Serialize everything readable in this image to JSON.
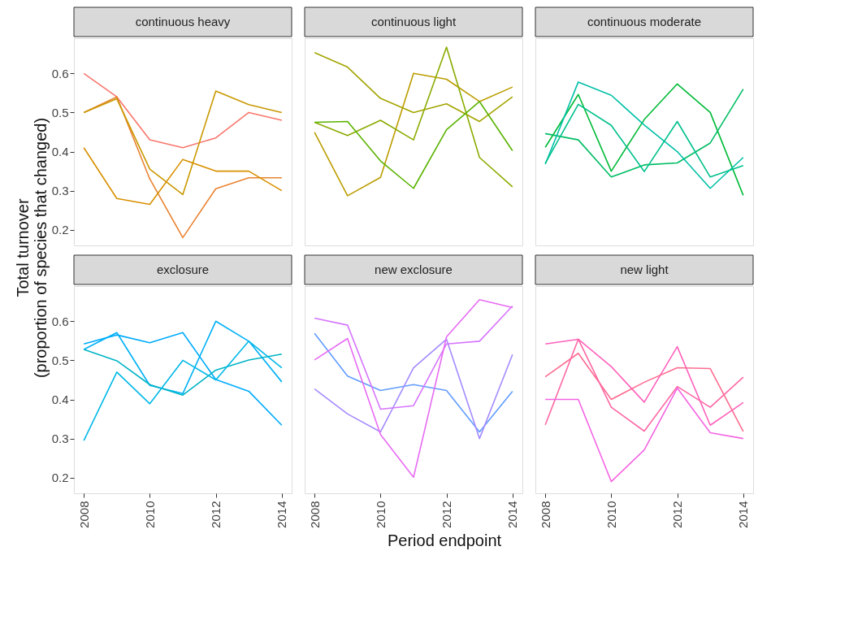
{
  "chart_data": [
    {
      "type": "line",
      "title": "continuous heavy",
      "ylabel": "Total turnover\n(proportion of species that changed)",
      "x": [
        2008,
        2009,
        2010,
        2011,
        2012,
        2013,
        2014
      ],
      "xlim": [
        2007.7,
        2014.3
      ],
      "ylim": [
        0.16,
        0.69
      ],
      "xticks": [
        2008,
        2010,
        2012,
        2014
      ],
      "yticks": [
        0.2,
        0.3,
        0.4,
        0.5,
        0.6
      ],
      "tick_labels": "y",
      "grid": false,
      "series": [
        {
          "color": "#F8766D",
          "values": [
            0.6,
            0.54,
            0.43,
            0.41,
            0.435,
            0.5,
            0.48
          ]
        },
        {
          "color": "#EA8331",
          "values": [
            0.5,
            0.54,
            0.33,
            0.18,
            0.305,
            0.333,
            0.333
          ]
        },
        {
          "color": "#C99800",
          "values": [
            0.5,
            0.535,
            0.355,
            0.29,
            0.555,
            0.52,
            0.5
          ]
        },
        {
          "color": "#D89000",
          "values": [
            0.41,
            0.28,
            0.265,
            0.38,
            0.35,
            0.35,
            0.3
          ]
        }
      ]
    },
    {
      "type": "line",
      "title": "continuous light",
      "x": [
        2008,
        2009,
        2010,
        2011,
        2012,
        2013,
        2014
      ],
      "xlim": [
        2007.7,
        2014.3
      ],
      "ylim": [
        0.16,
        0.69
      ],
      "xticks": [
        2008,
        2010,
        2012,
        2014
      ],
      "yticks": [
        0.2,
        0.3,
        0.4,
        0.5,
        0.6
      ],
      "tick_labels": false,
      "grid": false,
      "series": [
        {
          "color": "#A3A500",
          "values": [
            0.653,
            0.616,
            0.536,
            0.5,
            0.522,
            0.477,
            0.54
          ]
        },
        {
          "color": "#BB9D00",
          "values": [
            0.449,
            0.287,
            0.334,
            0.6,
            0.585,
            0.528,
            0.565
          ]
        },
        {
          "color": "#8AAB00",
          "values": [
            0.475,
            0.441,
            0.48,
            0.43,
            0.667,
            0.385,
            0.31
          ]
        },
        {
          "color": "#5BB300",
          "values": [
            0.475,
            0.477,
            0.376,
            0.306,
            0.456,
            0.528,
            0.402
          ]
        }
      ]
    },
    {
      "type": "line",
      "title": "continuous moderate",
      "x": [
        2008,
        2009,
        2010,
        2011,
        2012,
        2013,
        2014
      ],
      "xlim": [
        2007.7,
        2014.3
      ],
      "ylim": [
        0.16,
        0.69
      ],
      "xticks": [
        2008,
        2010,
        2012,
        2014
      ],
      "yticks": [
        0.2,
        0.3,
        0.4,
        0.5,
        0.6
      ],
      "tick_labels": false,
      "grid": false,
      "series": [
        {
          "color": "#00BA38",
          "values": [
            0.411,
            0.546,
            0.35,
            0.482,
            0.573,
            0.5,
            0.288
          ]
        },
        {
          "color": "#00BD64",
          "values": [
            0.446,
            0.43,
            0.335,
            0.366,
            0.371,
            0.422,
            0.56
          ]
        },
        {
          "color": "#00C0A8",
          "values": [
            0.368,
            0.578,
            0.544,
            0.468,
            0.4,
            0.306,
            0.385
          ]
        },
        {
          "color": "#00C08B",
          "values": [
            0.37,
            0.521,
            0.467,
            0.349,
            0.477,
            0.335,
            0.364
          ]
        }
      ]
    },
    {
      "type": "line",
      "title": "exclosure",
      "x": [
        2008,
        2009,
        2010,
        2011,
        2012,
        2013,
        2014
      ],
      "xlim": [
        2007.7,
        2014.3
      ],
      "ylim": [
        0.16,
        0.69
      ],
      "xticks": [
        2008,
        2010,
        2012,
        2014
      ],
      "yticks": [
        0.2,
        0.3,
        0.4,
        0.5,
        0.6
      ],
      "grid": false,
      "series": [
        {
          "color": "#00ABFD",
          "values": [
            0.542,
            0.565,
            0.545,
            0.571,
            0.451,
            0.421,
            0.334
          ]
        },
        {
          "color": "#00B0F6",
          "values": [
            0.528,
            0.571,
            0.436,
            0.415,
            0.6,
            0.549,
            0.445
          ]
        },
        {
          "color": "#00B4C5",
          "values": [
            0.528,
            0.499,
            0.438,
            0.411,
            0.475,
            0.501,
            0.516
          ]
        },
        {
          "color": "#00B8E7",
          "values": [
            0.295,
            0.47,
            0.389,
            0.5,
            0.45,
            0.549,
            0.481
          ]
        }
      ]
    },
    {
      "type": "line",
      "title": "new exclosure",
      "xlabel": "Period endpoint",
      "x": [
        2008,
        2009,
        2010,
        2011,
        2012,
        2013,
        2014
      ],
      "xlim": [
        2007.7,
        2014.3
      ],
      "ylim": [
        0.16,
        0.69
      ],
      "xticks": [
        2008,
        2010,
        2012,
        2014
      ],
      "yticks": [
        0.2,
        0.3,
        0.4,
        0.5,
        0.6
      ],
      "tick_labels": "x",
      "grid": false,
      "series": [
        {
          "color": "#619CFF",
          "values": [
            0.569,
            0.46,
            0.423,
            0.438,
            0.423,
            0.317,
            0.421
          ]
        },
        {
          "color": "#A58AFF",
          "values": [
            0.427,
            0.363,
            0.317,
            0.481,
            0.554,
            0.3,
            0.515
          ]
        },
        {
          "color": "#D575FE",
          "values": [
            0.608,
            0.59,
            0.375,
            0.384,
            0.542,
            0.549,
            0.639
          ]
        },
        {
          "color": "#E76BF3",
          "values": [
            0.501,
            0.556,
            0.31,
            0.201,
            0.56,
            0.655,
            0.635
          ]
        }
      ]
    },
    {
      "type": "line",
      "title": "new light",
      "x": [
        2008,
        2009,
        2010,
        2011,
        2012,
        2013,
        2014
      ],
      "xlim": [
        2007.7,
        2014.3
      ],
      "ylim": [
        0.16,
        0.69
      ],
      "xticks": [
        2008,
        2010,
        2012,
        2014
      ],
      "yticks": [
        0.2,
        0.3,
        0.4,
        0.5,
        0.6
      ],
      "tick_labels": "x",
      "grid": false,
      "series": [
        {
          "color": "#FF62BC",
          "values": [
            0.542,
            0.554,
            0.484,
            0.393,
            0.535,
            0.334,
            0.392
          ]
        },
        {
          "color": "#FF6C91",
          "values": [
            0.458,
            0.518,
            0.4,
            0.444,
            0.481,
            0.479,
            0.318
          ]
        },
        {
          "color": "#FF67A4",
          "values": [
            0.335,
            0.554,
            0.38,
            0.319,
            0.433,
            0.38,
            0.457
          ]
        },
        {
          "color": "#F564E3",
          "values": [
            0.4,
            0.4,
            0.19,
            0.271,
            0.429,
            0.315,
            0.3
          ]
        }
      ]
    }
  ]
}
